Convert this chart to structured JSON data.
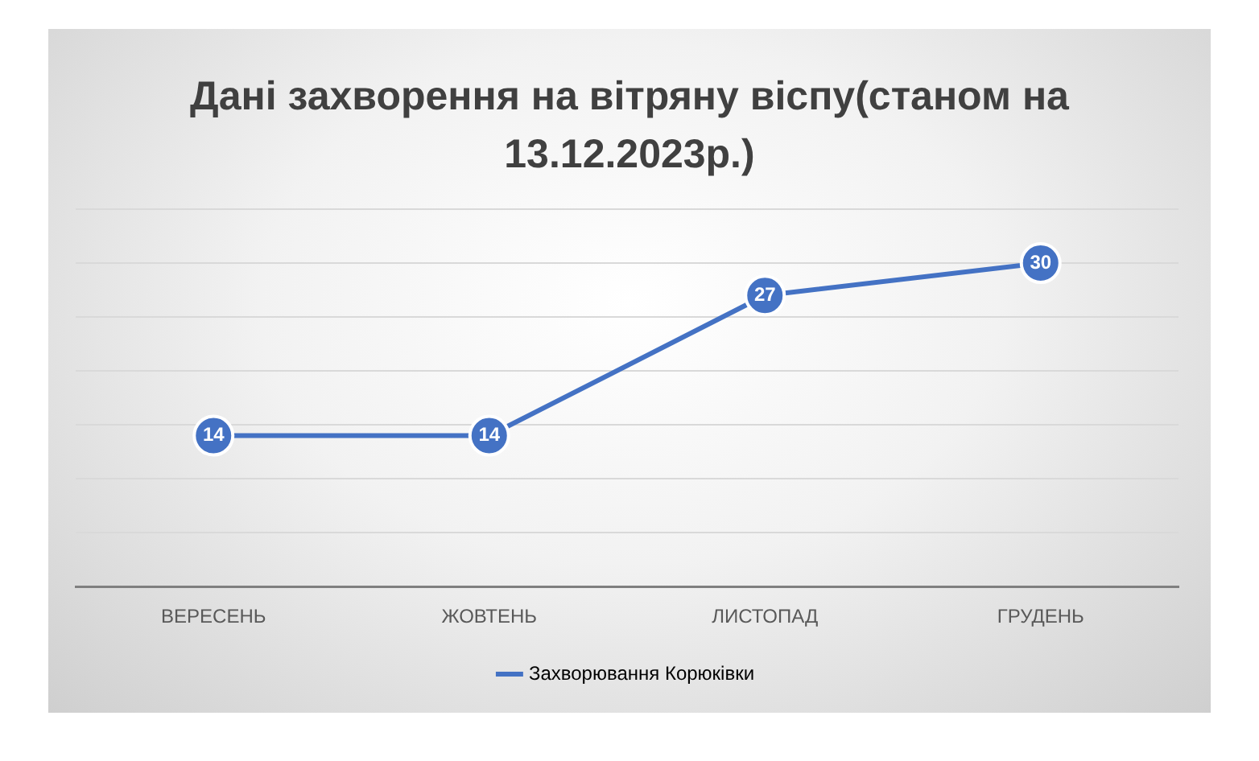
{
  "chart_data": {
    "type": "line",
    "title": "Дані захворення на вітряну віспу(станом на 13.12.2023р.)",
    "categories": [
      "ВЕРЕСЕНЬ",
      "ЖОВТЕНЬ",
      "ЛИСТОПАД",
      "ГРУДЕНЬ"
    ],
    "series": [
      {
        "name": "Захворювання Корюківки",
        "color": "#4472c4",
        "values": [
          14,
          14,
          27,
          30
        ]
      }
    ],
    "ylim": [
      0,
      35
    ],
    "yticks": [
      {
        "value": 0,
        "label": null
      },
      {
        "value": 5,
        "label": null
      },
      {
        "value": 10,
        "label": null
      },
      {
        "value": 15,
        "label": null
      },
      {
        "value": 20,
        "label": null
      },
      {
        "value": 25,
        "label": null
      },
      {
        "value": 30,
        "label": null
      },
      {
        "value": 35,
        "label": null
      }
    ],
    "tick_labels": "x",
    "grid": "y",
    "legend": "bottom",
    "marker": "circle",
    "line_style": "solid",
    "data_labels": true
  }
}
